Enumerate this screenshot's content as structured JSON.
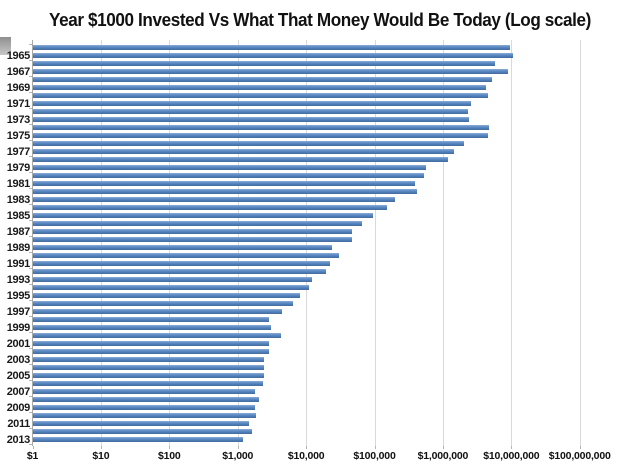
{
  "chart_data": {
    "type": "bar",
    "orientation": "horizontal",
    "title": "Year $1000 Invested Vs What That Money Would Be Today (Log scale)",
    "xlabel": "",
    "ylabel": "",
    "x_scale": "log10",
    "x_range": [
      1,
      100000000
    ],
    "x_tick_labels": [
      "$1",
      "$10",
      "$100",
      "$1,000",
      "$10,000",
      "$100,000",
      "$1,000,000",
      "$10,000,000",
      "$100,000,000"
    ],
    "y_tick_labels": [
      "1965",
      "1967",
      "1969",
      "1971",
      "1973",
      "1975",
      "1977",
      "1979",
      "1981",
      "1983",
      "1985",
      "1987",
      "1989",
      "1991",
      "1993",
      "1995",
      "1997",
      "1999",
      "2001",
      "2003",
      "2005",
      "2007",
      "2009",
      "2011",
      "2013"
    ],
    "legend": "none",
    "grid": "vertical decade gridlines",
    "bar_color": "#4f81bd",
    "gridline_color": "#d9d9d9",
    "background_color": "#ffffff",
    "categories": [
      1964,
      1965,
      1966,
      1967,
      1968,
      1969,
      1970,
      1971,
      1972,
      1973,
      1974,
      1975,
      1976,
      1977,
      1978,
      1979,
      1980,
      1981,
      1982,
      1983,
      1984,
      1985,
      1986,
      1987,
      1988,
      1989,
      1990,
      1991,
      1992,
      1993,
      1994,
      1995,
      1996,
      1997,
      1998,
      1999,
      2000,
      2001,
      2002,
      2003,
      2004,
      2005,
      2006,
      2007,
      2008,
      2009,
      2010,
      2011,
      2012,
      2013
    ],
    "values": [
      9500000,
      10400000,
      5700000,
      9000000,
      5300000,
      4300000,
      4600000,
      2600000,
      2330000,
      2400000,
      4700000,
      4600000,
      2050000,
      1440000,
      1200000,
      570000,
      530000,
      390000,
      420000,
      200000,
      150000,
      95000,
      66000,
      47000,
      47000,
      23500,
      30500,
      22000,
      19600,
      12200,
      11000,
      8000,
      6500,
      4500,
      2900,
      3100,
      4250,
      2880,
      2830,
      2450,
      2440,
      2400,
      2330,
      1760,
      2030,
      1760,
      1820,
      1480,
      1620,
      1180
    ]
  }
}
